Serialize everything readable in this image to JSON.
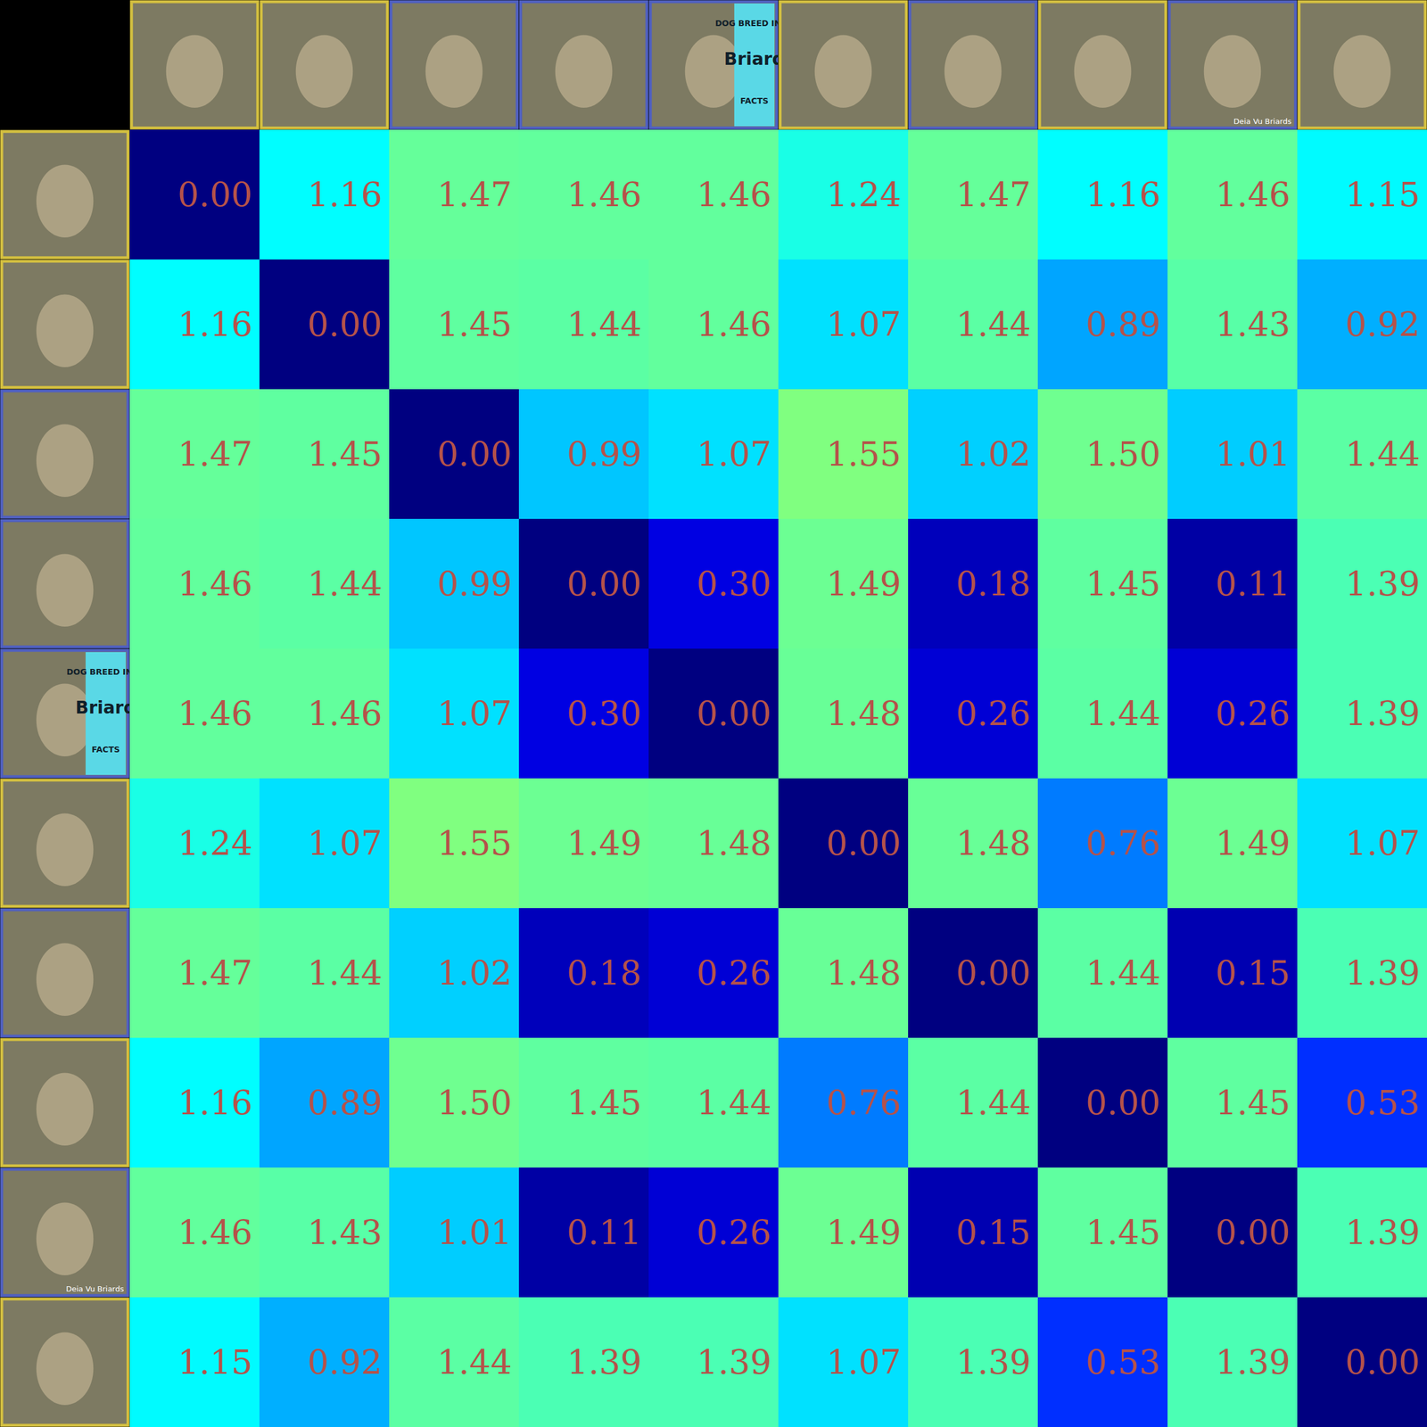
{
  "chart_data": {
    "type": "heatmap",
    "categories": [
      null,
      null,
      null,
      null,
      null,
      null,
      null,
      null,
      null,
      null
    ],
    "colors": [
      "#d4c040",
      "#d4c040",
      "#5060c0",
      "#5060c0",
      "#5060c0",
      "#d4c040",
      "#5060c0",
      "#d4c040",
      "#5060c0",
      "#d4c040"
    ],
    "values": [
      [
        0.0,
        1.16,
        1.47,
        1.46,
        1.46,
        1.24,
        1.47,
        1.16,
        1.46,
        1.15
      ],
      [
        1.16,
        0.0,
        1.45,
        1.44,
        1.46,
        1.07,
        1.44,
        0.89,
        1.43,
        0.92
      ],
      [
        1.47,
        1.45,
        0.0,
        0.99,
        1.07,
        1.55,
        1.02,
        1.5,
        1.01,
        1.44
      ],
      [
        1.46,
        1.44,
        0.99,
        0.0,
        0.3,
        1.49,
        0.18,
        1.45,
        0.11,
        1.39
      ],
      [
        1.46,
        1.46,
        1.07,
        0.3,
        0.0,
        1.48,
        0.26,
        1.44,
        0.26,
        1.39
      ],
      [
        1.24,
        1.07,
        1.55,
        1.49,
        1.48,
        0.0,
        1.48,
        0.76,
        1.49,
        1.07
      ],
      [
        1.47,
        1.44,
        1.02,
        0.18,
        0.26,
        1.48,
        0.0,
        1.44,
        0.15,
        1.39
      ],
      [
        1.16,
        0.89,
        1.5,
        1.45,
        1.44,
        0.76,
        1.44,
        0.0,
        1.45,
        0.53
      ],
      [
        1.46,
        1.43,
        1.01,
        0.11,
        0.26,
        1.49,
        0.15,
        1.45,
        0.0,
        1.39
      ],
      [
        1.15,
        0.92,
        1.44,
        1.39,
        1.39,
        1.07,
        1.39,
        0.53,
        1.39,
        0.0
      ]
    ],
    "value_labels": [
      [
        "0.00",
        "1.16",
        "1.47",
        "1.46",
        "1.46",
        "1.24",
        "1.47",
        "1.16",
        "1.46",
        "1.15"
      ],
      [
        "1.16",
        "0.00",
        "1.45",
        "1.44",
        "1.46",
        "1.07",
        "1.44",
        "0.89",
        "1.43",
        "0.92"
      ],
      [
        "1.47",
        "1.45",
        "0.00",
        "0.99",
        "1.07",
        "1.55",
        "1.02",
        "1.50",
        "1.01",
        "1.44"
      ],
      [
        "1.46",
        "1.44",
        "0.99",
        "0.00",
        "0.30",
        "1.49",
        "0.18",
        "1.45",
        "0.11",
        "1.39"
      ],
      [
        "1.46",
        "1.46",
        "1.07",
        "0.30",
        "0.00",
        "1.48",
        "0.26",
        "1.44",
        "0.26",
        "1.39"
      ],
      [
        "1.24",
        "1.07",
        "1.55",
        "1.49",
        "1.48",
        "0.00",
        "1.48",
        "0.76",
        "1.49",
        "1.07"
      ],
      [
        "1.47",
        "1.44",
        "1.02",
        "0.18",
        "0.26",
        "1.48",
        "0.00",
        "1.44",
        "0.15",
        "1.39"
      ],
      [
        "1.16",
        "0.89",
        "1.50",
        "1.45",
        "1.44",
        "0.76",
        "1.44",
        "0.00",
        "1.45",
        "0.53"
      ],
      [
        "1.46",
        "1.43",
        "1.01",
        "0.11",
        "0.26",
        "1.49",
        "0.15",
        "1.45",
        "0.00",
        "1.39"
      ],
      [
        "1.15",
        "0.92",
        "1.44",
        "1.39",
        "1.39",
        "1.07",
        "1.39",
        "0.53",
        "1.39",
        "0.00"
      ]
    ],
    "color_range": [
      0,
      3.1
    ],
    "data_labels": true,
    "annotations": [
      {
        "image": 4,
        "text": "DOG BREED INFO"
      },
      {
        "image": 4,
        "text": "Briard"
      },
      {
        "image": 4,
        "text": "FACTS"
      },
      {
        "image": 8,
        "text": "Deia Vu Briards"
      }
    ]
  }
}
